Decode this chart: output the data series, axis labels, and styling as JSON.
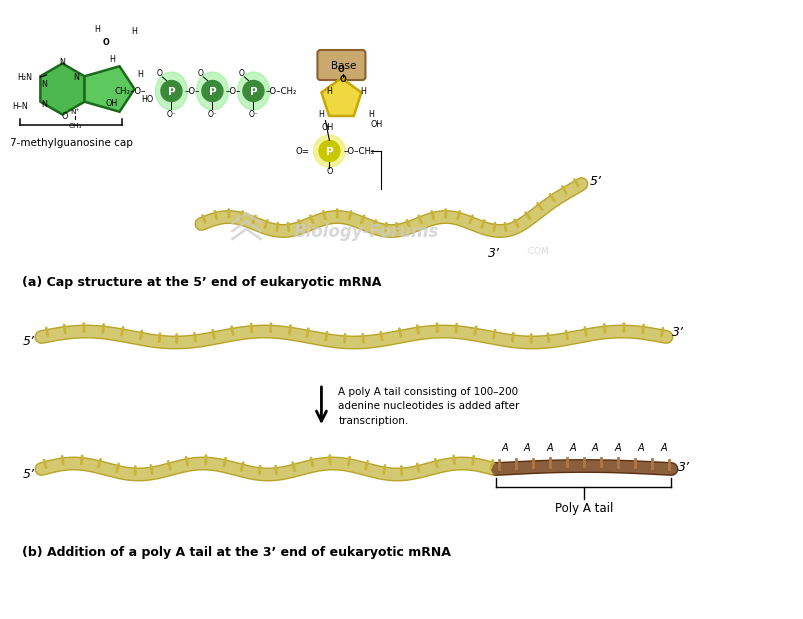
{
  "bg_color": "#ffffff",
  "title_a": "(a) Cap structure at the 5’ end of eukaryotic mRNA",
  "title_b": "(b) Addition of a poly A tail at the 3’ end of eukaryotic mRNA",
  "mrna_color": "#d4c870",
  "mrna_dark": "#b8a428",
  "mrna_teeth_color": "#c8b438",
  "poly_a_color": "#8B5E3C",
  "poly_a_light": "#b07848",
  "green_ring_glow": "#90ee90",
  "green_p_color": "#3a8a3a",
  "yellow_sugar_color": "#f0d840",
  "yellow_sugar_dark": "#c8a800",
  "yellow_p_color": "#c8c800",
  "yellow_p_glow": "#f0f080",
  "base_color": "#c9a96e",
  "base_dark": "#8b6030",
  "watermark_color": "#cccccc",
  "annotation_text": "A poly A tail consisting of 100–200\nadenine nucleotides is added after\ntranscription.",
  "poly_a_label": "Poly A tail",
  "label_7mg": "7-methylguanosine cap",
  "prime5": "5’",
  "prime3": "3’"
}
